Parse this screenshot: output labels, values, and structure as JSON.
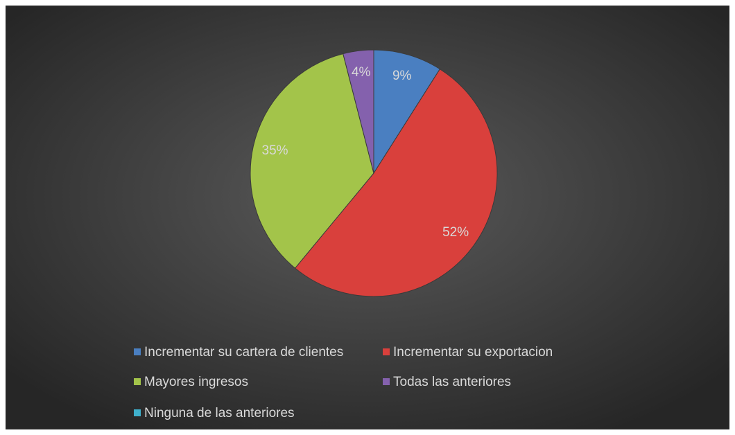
{
  "chart_data": {
    "type": "pie",
    "categories": [
      "Incrementar su cartera de clientes",
      "Incrementar su exportacion",
      "Mayores ingresos",
      "Todas las anteriores",
      "Ninguna de las anteriores"
    ],
    "values": [
      9,
      52,
      35,
      4,
      0
    ],
    "value_labels": [
      "9%",
      "52%",
      "35%",
      "4%",
      null
    ],
    "colors": [
      "#4a7fc1",
      "#d9403c",
      "#a3c44a",
      "#8461ad",
      "#3fb0cc"
    ],
    "legend": "bottom"
  }
}
